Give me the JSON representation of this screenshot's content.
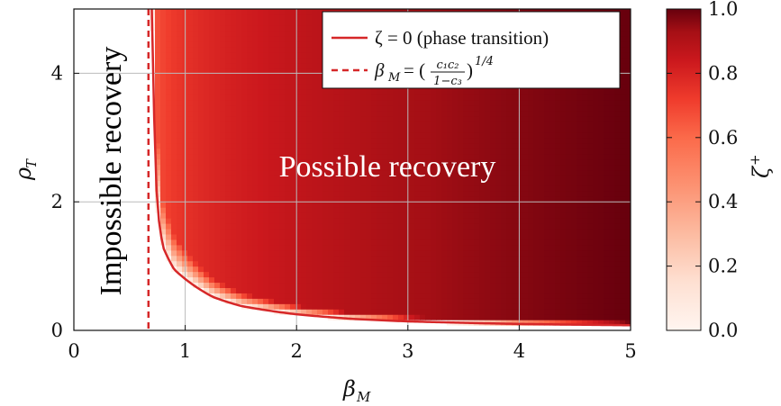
{
  "chart_data": {
    "type": "heatmap",
    "xlabel": "β",
    "xlabel_sub": "M",
    "ylabel": "ρ",
    "ylabel_sub": "T",
    "xlim": [
      0,
      5
    ],
    "ylim": [
      0,
      5
    ],
    "x_ticks": [
      0,
      1,
      2,
      3,
      4,
      5
    ],
    "y_ticks": [
      0,
      2,
      4
    ],
    "grid": true,
    "colorbar": {
      "label": "ζ",
      "label_sup": "+",
      "range": [
        0.0,
        1.0
      ],
      "ticks": [
        "0.0",
        "0.2",
        "0.4",
        "0.6",
        "0.8",
        "1.0"
      ],
      "colormap": "Reds",
      "color_low": "#fff5f0",
      "color_high": "#67000d"
    },
    "threshold_beta": 0.67,
    "transition_curve": {
      "description_x": [
        0.7,
        0.75,
        0.8,
        0.9,
        1.0,
        1.25,
        1.5,
        2.0,
        2.5,
        3.0,
        4.0,
        5.0
      ],
      "y": [
        5.0,
        1.9,
        1.3,
        0.95,
        0.8,
        0.52,
        0.38,
        0.25,
        0.18,
        0.14,
        0.1,
        0.08
      ]
    },
    "series": [
      {
        "name": "ζ = 0 (phase transition)",
        "style": "solid",
        "color": "#d62728"
      },
      {
        "name": "β",
        "name_sub": "M",
        "name_rest": " = (",
        "frac_num": "c₁c₂",
        "frac_den": "1−c₃",
        "name_tail": ")",
        "name_sup": "1/4",
        "style": "dashed",
        "color": "#d62728"
      }
    ],
    "legend_position": "top-right",
    "annotations": [
      {
        "text": "Impossible recovery",
        "color": "#000000"
      },
      {
        "text": "Possible recovery",
        "color": "#ffffff"
      }
    ]
  }
}
